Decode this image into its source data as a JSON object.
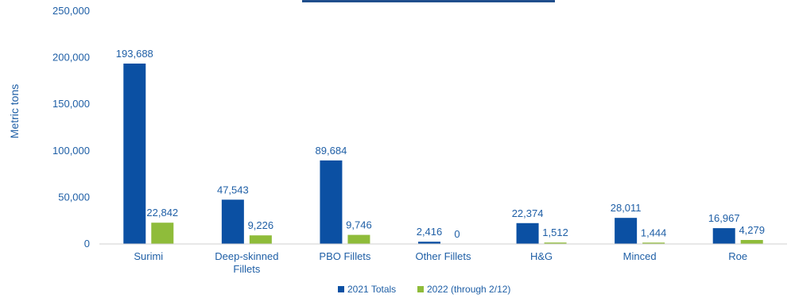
{
  "chart_data": {
    "type": "bar",
    "ylabel": "Metric tons",
    "ylim": [
      0,
      250000
    ],
    "yticks": [
      "0",
      "50,000",
      "100,000",
      "150,000",
      "200,000",
      "250,000"
    ],
    "categories": [
      [
        "Surimi"
      ],
      [
        "Deep-skinned",
        "Fillets"
      ],
      [
        "PBO Fillets"
      ],
      [
        "Other Fillets"
      ],
      [
        "H&G"
      ],
      [
        "Minced"
      ],
      [
        "Roe"
      ]
    ],
    "series": [
      {
        "name": "2021 Totals",
        "color": "#0b50a3",
        "values": [
          193688,
          47543,
          89684,
          2416,
          22374,
          28011,
          16967
        ],
        "labels": [
          "193,688",
          "47,543",
          "89,684",
          "2,416",
          "22,374",
          "28,011",
          "16,967"
        ]
      },
      {
        "name": "2022 (through 2/12)",
        "color": "#8fbc3a",
        "values": [
          22842,
          9226,
          9746,
          0,
          1512,
          1444,
          4279
        ],
        "labels": [
          "22,842",
          "9,226",
          "9,746",
          "0",
          "1,512",
          "1,444",
          "4,279"
        ]
      }
    ],
    "grid": false,
    "legend_position": "bottom-center"
  }
}
